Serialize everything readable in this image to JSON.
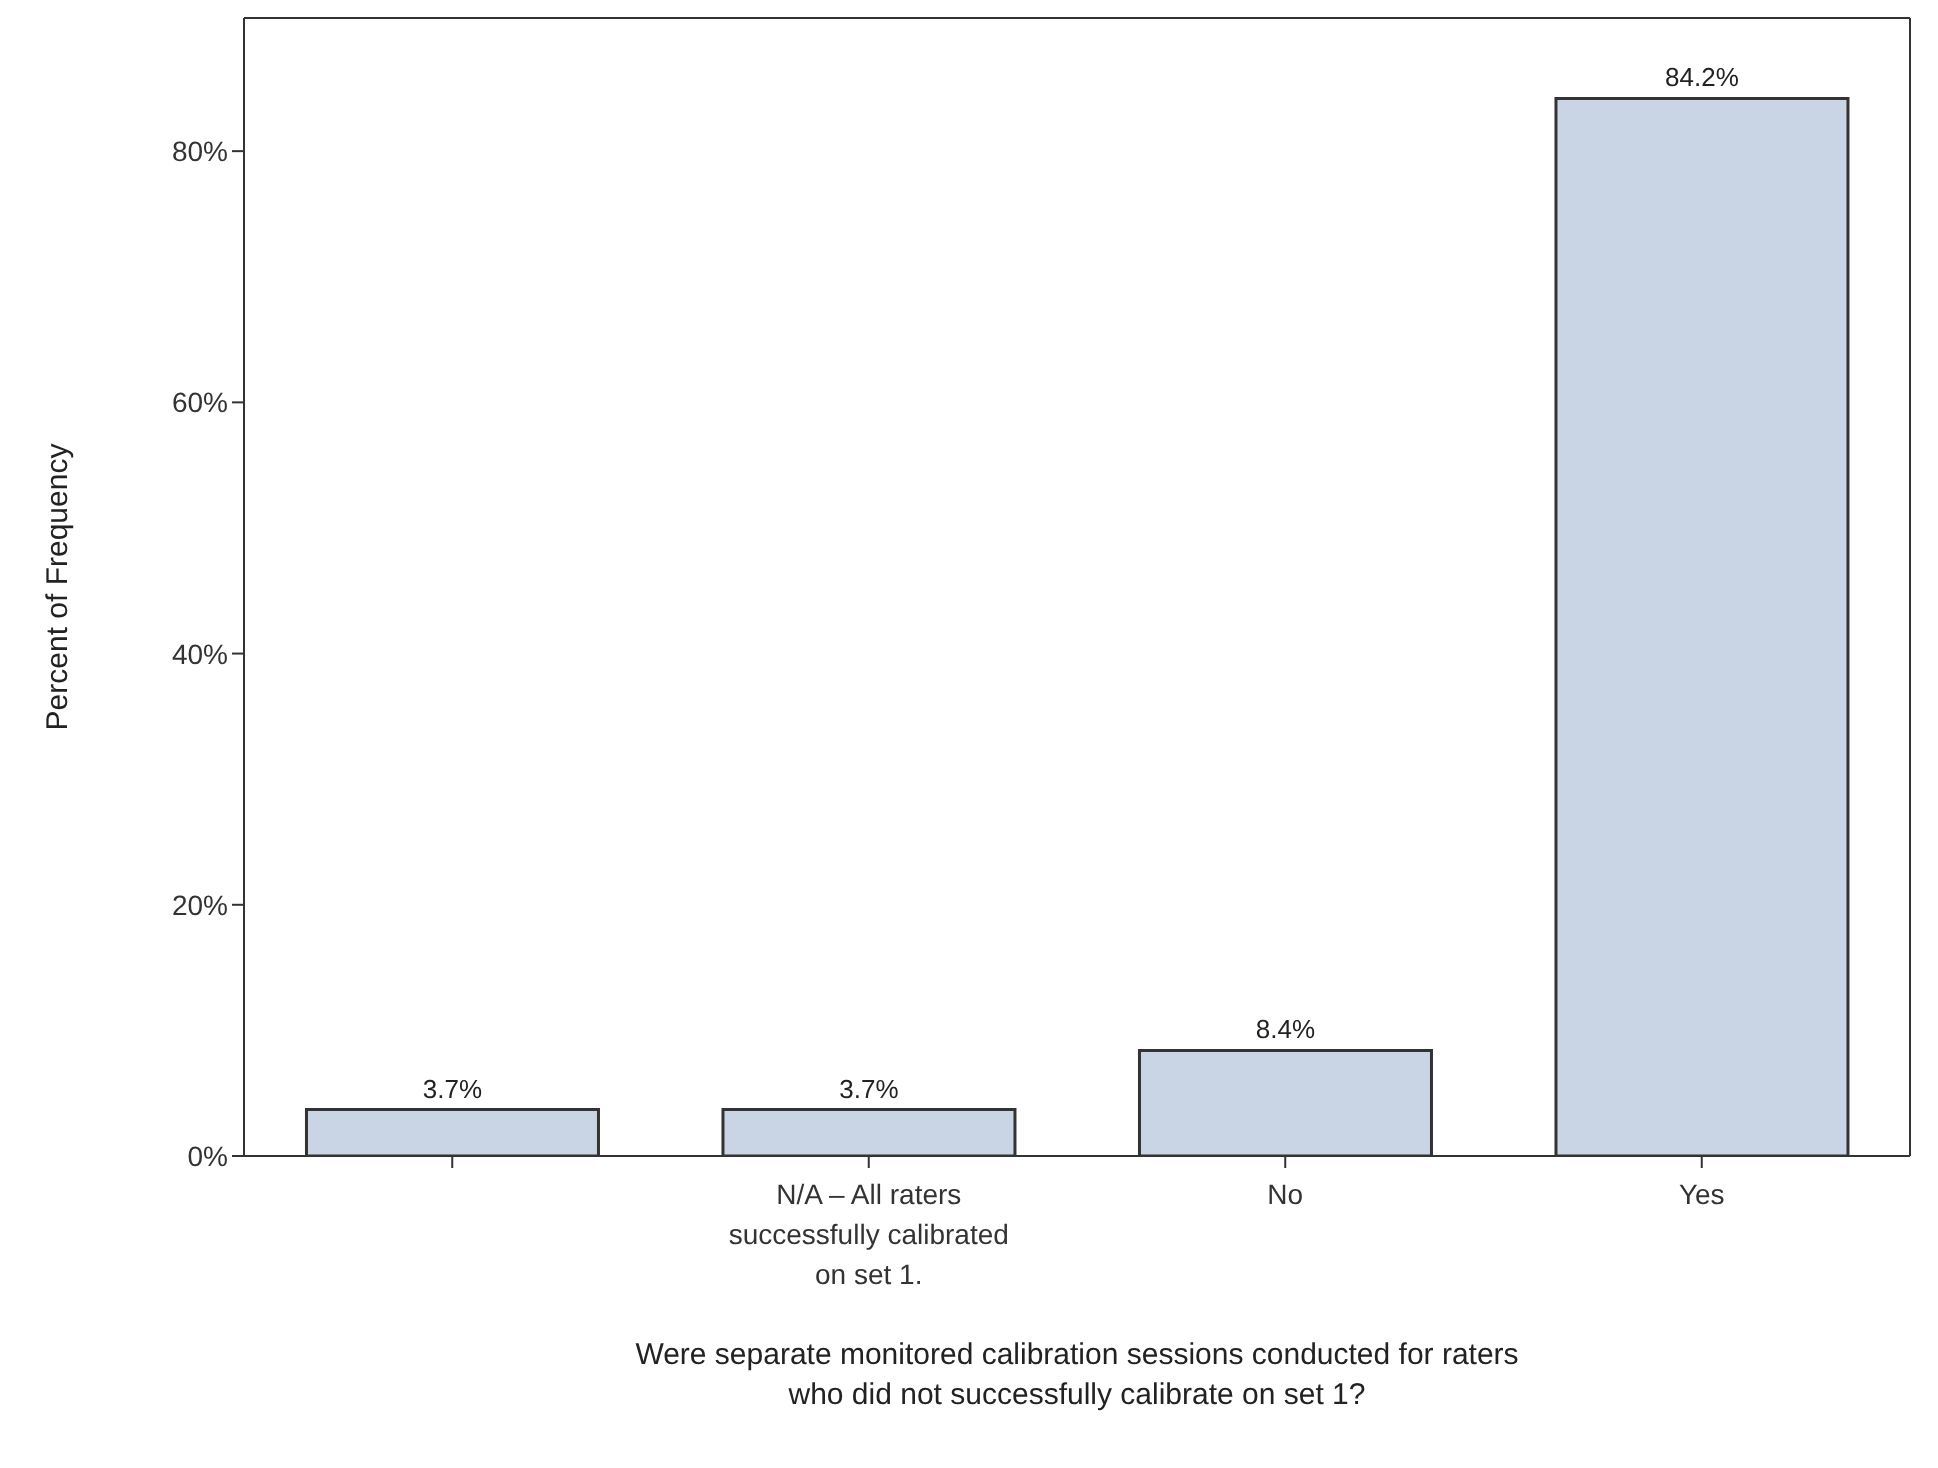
{
  "chart_data": {
    "type": "bar",
    "xlabel": "Were separate monitored calibration sessions conducted for raters who did not successfully calibrate on set 1?",
    "ylabel": "Percent of Frequency",
    "categories": [
      null,
      "N/A – All raters successfully calibrated on set 1.",
      "No",
      "Yes"
    ],
    "values": [
      3.7,
      3.7,
      8.4,
      84.2
    ],
    "value_labels": [
      "3.7%",
      "3.7%",
      "8.4%",
      "84.2%"
    ],
    "color": "#c9d5e4",
    "ylim": [
      0,
      90.6
    ],
    "yticks": [
      {
        "value": 0,
        "label": "0%"
      },
      {
        "value": 20,
        "label": "20%"
      },
      {
        "value": 40,
        "label": "40%"
      },
      {
        "value": 60,
        "label": "60%"
      },
      {
        "value": 80,
        "label": "80%"
      }
    ],
    "grid": false,
    "legend": false
  }
}
